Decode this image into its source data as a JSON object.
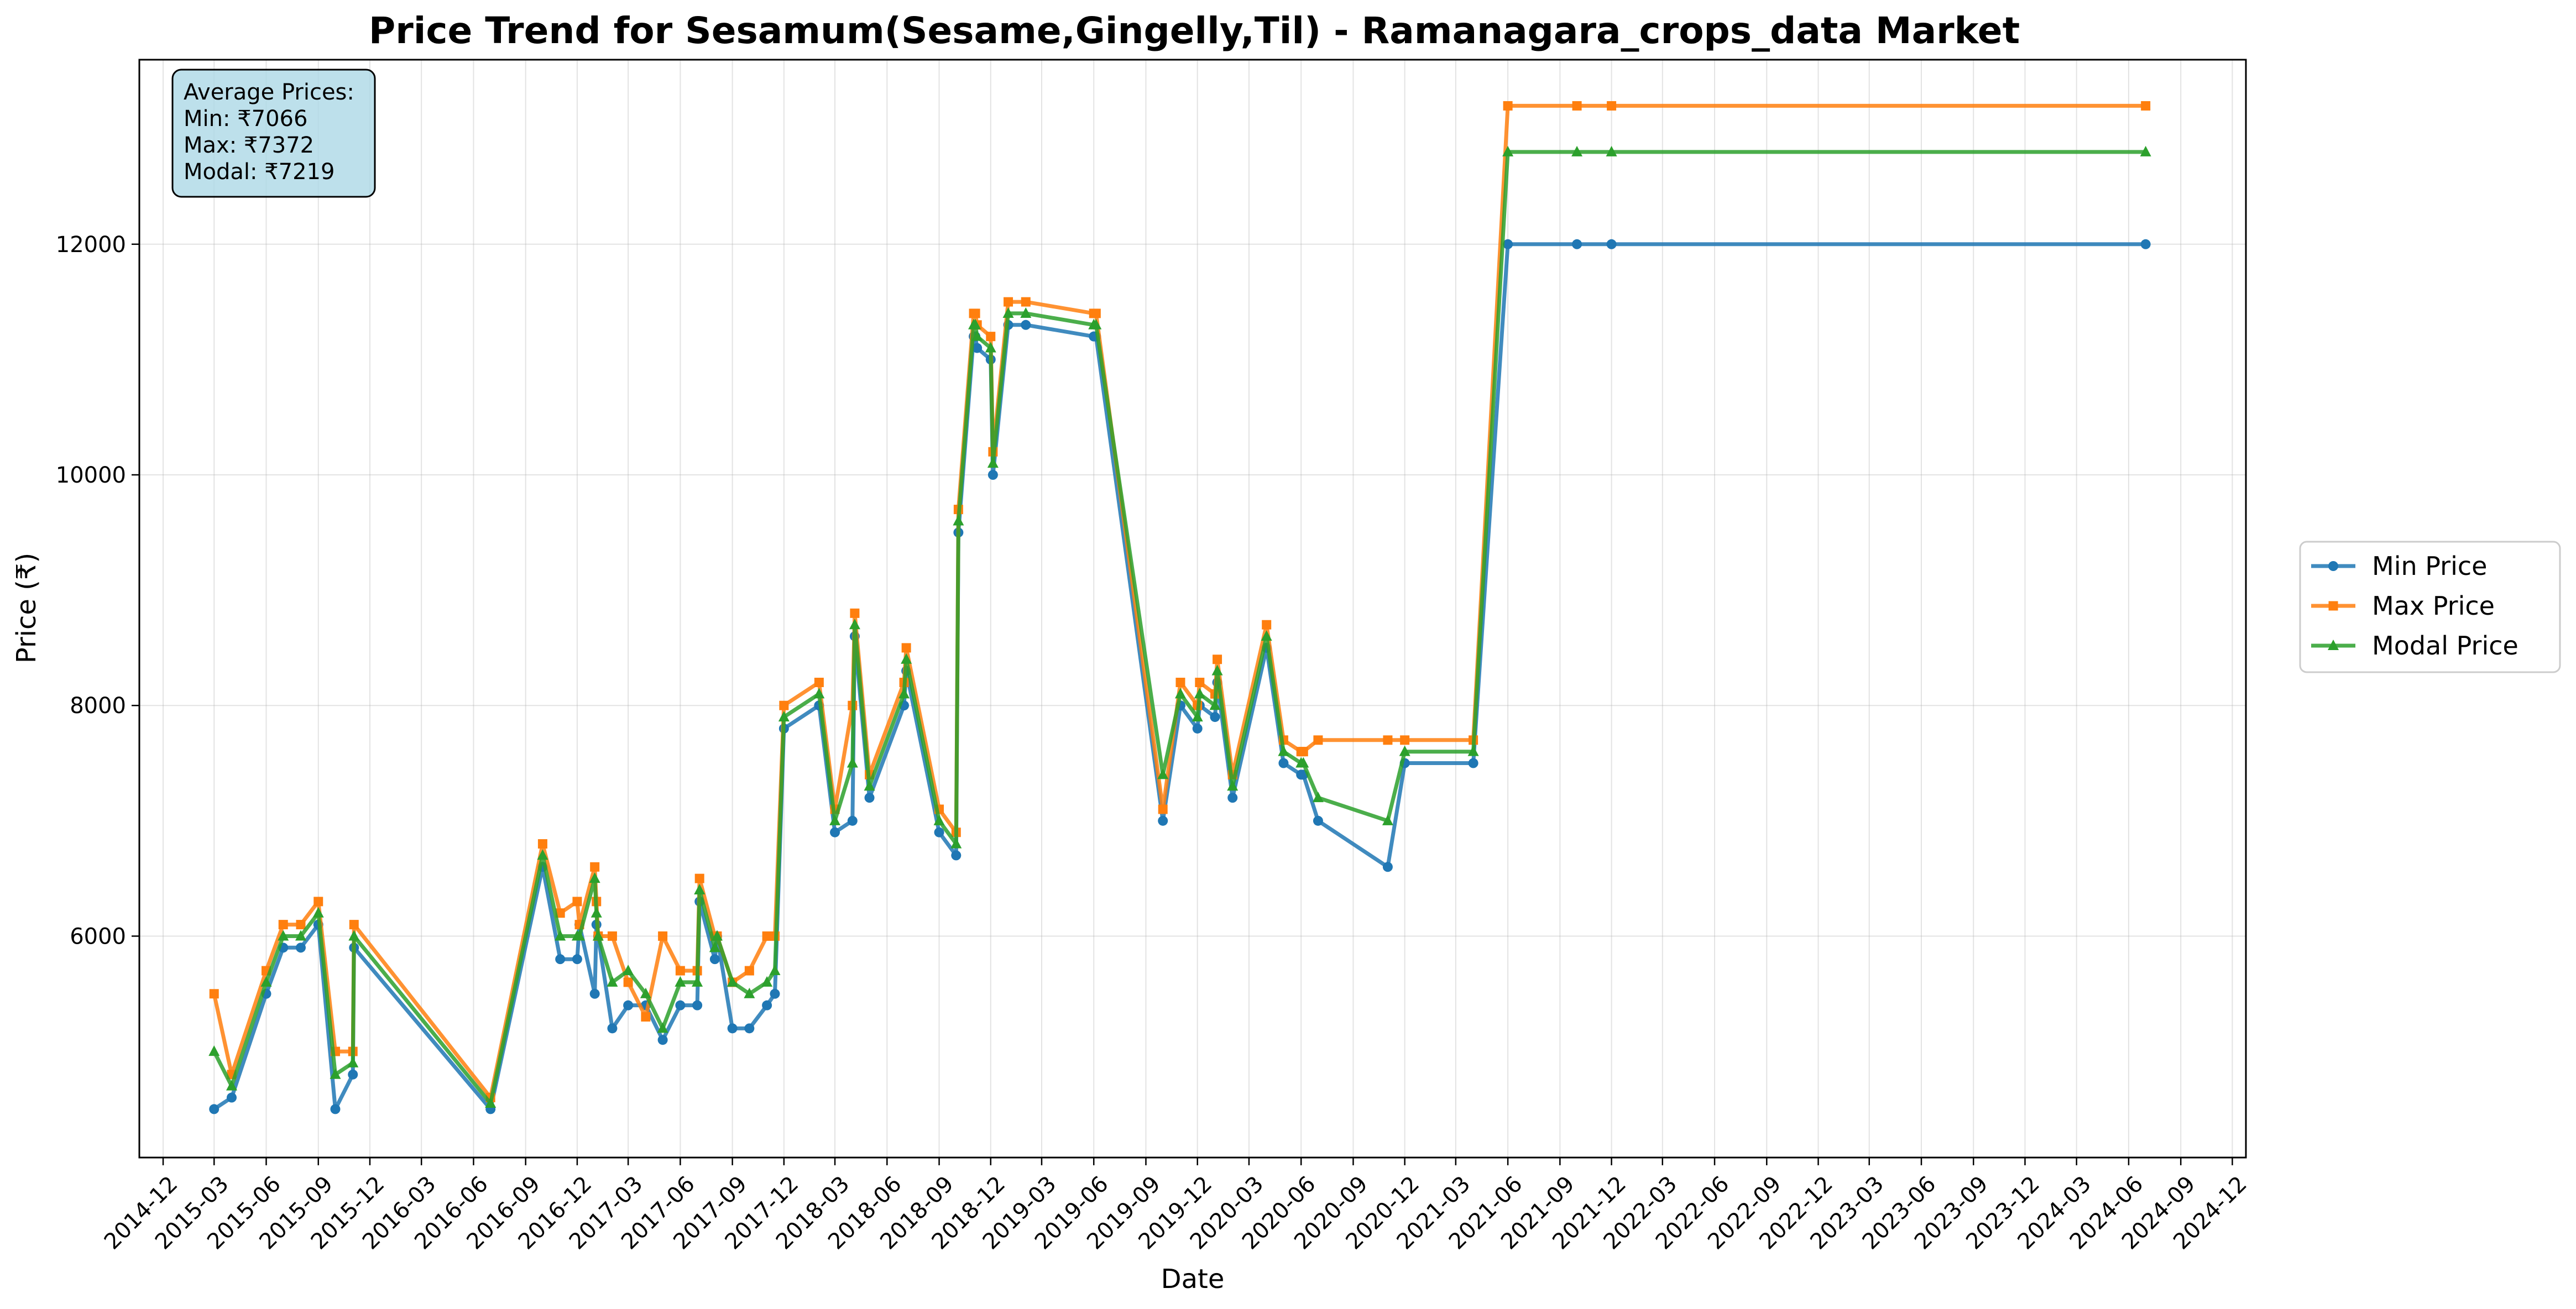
{
  "chart_data": {
    "type": "line",
    "title": "Price Trend for Sesamum(Sesame,Gingelly,Til) - Ramanagara_crops_data Market",
    "xlabel": "Date",
    "ylabel": "Price (₹)",
    "x_ticks": [
      "2014-12",
      "2015-03",
      "2015-06",
      "2015-09",
      "2015-12",
      "2016-03",
      "2016-06",
      "2016-09",
      "2016-12",
      "2017-03",
      "2017-06",
      "2017-09",
      "2017-12",
      "2018-03",
      "2018-06",
      "2018-09",
      "2018-12",
      "2019-03",
      "2019-06",
      "2019-09",
      "2019-12",
      "2020-03",
      "2020-06",
      "2020-09",
      "2020-12",
      "2021-03",
      "2021-06",
      "2021-09",
      "2021-12",
      "2022-03",
      "2022-06",
      "2022-09",
      "2022-12",
      "2023-03",
      "2023-06",
      "2023-09",
      "2023-12",
      "2024-03",
      "2024-06",
      "2024-09",
      "2024-12"
    ],
    "y_ticks": [
      6000,
      8000,
      10000,
      12000
    ],
    "xlim": [
      "2014-10-20",
      "2024-12-25"
    ],
    "ylim": [
      4080,
      13600
    ],
    "grid": true,
    "legend_position": "outside-right",
    "stats_box": {
      "lines": [
        "Average Prices:",
        "Min: ₹7066",
        "Max: ₹7372",
        "Modal: ₹7219"
      ]
    },
    "x": [
      "2015-03-01",
      "2015-04-01",
      "2015-06-01",
      "2015-07-01",
      "2015-08-01",
      "2015-09-01",
      "2015-10-01",
      "2015-11-01",
      "2015-11-03",
      "2016-07-01",
      "2016-10-01",
      "2016-11-01",
      "2016-12-01",
      "2016-12-05",
      "2017-01-01",
      "2017-01-04",
      "2017-01-07",
      "2017-02-01",
      "2017-03-01",
      "2017-04-01",
      "2017-05-01",
      "2017-06-01",
      "2017-07-01",
      "2017-07-05",
      "2017-08-01",
      "2017-08-05",
      "2017-09-01",
      "2017-10-01",
      "2017-11-01",
      "2017-11-15",
      "2017-12-01",
      "2018-02-01",
      "2018-03-01",
      "2018-04-01",
      "2018-04-05",
      "2018-05-01",
      "2018-07-01",
      "2018-07-05",
      "2018-09-01",
      "2018-10-01",
      "2018-10-05",
      "2018-11-01",
      "2018-11-04",
      "2018-11-07",
      "2018-12-01",
      "2018-12-05",
      "2019-01-01",
      "2019-02-01",
      "2019-06-01",
      "2019-06-05",
      "2019-10-01",
      "2019-11-01",
      "2019-12-01",
      "2019-12-05",
      "2020-01-01",
      "2020-01-05",
      "2020-02-01",
      "2020-04-01",
      "2020-05-01",
      "2020-06-01",
      "2020-06-05",
      "2020-07-01",
      "2020-11-01",
      "2020-12-01",
      "2021-04-01",
      "2021-06-01",
      "2021-10-01",
      "2021-12-01",
      "2024-07-01"
    ],
    "series": [
      {
        "name": "Min Price",
        "color": "#1f77b4",
        "marker": "circle",
        "values": [
          4500,
          4600,
          5500,
          5900,
          5900,
          6100,
          4500,
          4800,
          5900,
          4500,
          6600,
          5800,
          5800,
          6100,
          5500,
          6100,
          6000,
          5200,
          5400,
          5400,
          5100,
          5400,
          5400,
          6300,
          5800,
          6000,
          5200,
          5200,
          5400,
          5500,
          7800,
          8000,
          6900,
          7000,
          8600,
          7200,
          8000,
          8300,
          6900,
          6700,
          9500,
          11200,
          11200,
          11100,
          11000,
          10000,
          11300,
          11300,
          11200,
          11200,
          7000,
          8000,
          7800,
          8000,
          7900,
          8200,
          7200,
          8500,
          7500,
          7400,
          7400,
          7000,
          6600,
          7500,
          7500,
          12000,
          12000,
          12000,
          12000
        ]
      },
      {
        "name": "Max Price",
        "color": "#ff7f0e",
        "marker": "square",
        "values": [
          5500,
          4800,
          5700,
          6100,
          6100,
          6300,
          5000,
          5000,
          6100,
          4600,
          6800,
          6200,
          6300,
          6100,
          6600,
          6300,
          6000,
          6000,
          5600,
          5300,
          6000,
          5700,
          5700,
          6500,
          6000,
          6000,
          5600,
          5700,
          6000,
          6000,
          8000,
          8200,
          7100,
          8000,
          8800,
          7400,
          8200,
          8500,
          7100,
          6900,
          9700,
          11400,
          11400,
          11300,
          11200,
          10200,
          11500,
          11500,
          11400,
          11400,
          7100,
          8200,
          8000,
          8200,
          8100,
          8400,
          7400,
          8700,
          7700,
          7600,
          7600,
          7700,
          7700,
          7700,
          7700,
          13200,
          13200,
          13200,
          13200
        ]
      },
      {
        "name": "Modal Price",
        "color": "#2ca02c",
        "marker": "triangle",
        "values": [
          5000,
          4700,
          5600,
          6000,
          6000,
          6200,
          4800,
          4900,
          6000,
          4550,
          6700,
          6000,
          6000,
          6000,
          6500,
          6200,
          6000,
          5600,
          5700,
          5500,
          5200,
          5600,
          5600,
          6400,
          5900,
          6000,
          5600,
          5500,
          5600,
          5700,
          7900,
          8100,
          7000,
          7500,
          8700,
          7300,
          8100,
          8400,
          7000,
          6800,
          9600,
          11300,
          11300,
          11200,
          11100,
          10100,
          11400,
          11400,
          11300,
          11300,
          7400,
          8100,
          7900,
          8100,
          8000,
          8300,
          7300,
          8600,
          7600,
          7500,
          7500,
          7200,
          7000,
          7600,
          7600,
          12800,
          12800,
          12800,
          12800
        ]
      }
    ]
  }
}
